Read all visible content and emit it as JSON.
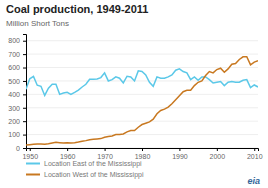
{
  "chart_data": {
    "type": "line",
    "title": "Coal production, 1949-2011",
    "ylabel": "Million Short Tons",
    "annotations": [
      "eia"
    ],
    "x": [
      1949,
      1950,
      1951,
      1952,
      1953,
      1954,
      1955,
      1956,
      1957,
      1958,
      1959,
      1960,
      1961,
      1962,
      1963,
      1964,
      1965,
      1966,
      1967,
      1968,
      1969,
      1970,
      1971,
      1972,
      1973,
      1974,
      1975,
      1976,
      1977,
      1978,
      1979,
      1980,
      1981,
      1982,
      1983,
      1984,
      1985,
      1986,
      1987,
      1988,
      1989,
      1990,
      1991,
      1992,
      1993,
      1994,
      1995,
      1996,
      1997,
      1998,
      1999,
      2000,
      2001,
      2002,
      2003,
      2004,
      2005,
      2006,
      2007,
      2008,
      2009,
      2010,
      2011
    ],
    "series": [
      {
        "name": "Location East of the Mississippi",
        "color": "#5bc8e8",
        "values": [
          438,
          516,
          534,
          468,
          460,
          392,
          446,
          476,
          476,
          400,
          410,
          415,
          400,
          415,
          432,
          455,
          475,
          512,
          512,
          515,
          525,
          560,
          500,
          510,
          530,
          520,
          485,
          535,
          530,
          500,
          575,
          570,
          545,
          490,
          460,
          530,
          520,
          520,
          530,
          545,
          580,
          590,
          570,
          560,
          510,
          530,
          505,
          530,
          530,
          510,
          485,
          490,
          495,
          465,
          490,
          495,
          490,
          490,
          505,
          510,
          450,
          470,
          455
        ]
      },
      {
        "name": "Location West of the Mississippi",
        "color": "#c87820",
        "values": [
          22,
          25,
          28,
          30,
          30,
          28,
          32,
          38,
          42,
          40,
          38,
          40,
          38,
          40,
          44,
          50,
          55,
          62,
          65,
          68,
          70,
          80,
          85,
          90,
          100,
          100,
          105,
          120,
          130,
          130,
          155,
          175,
          185,
          195,
          215,
          255,
          280,
          290,
          305,
          330,
          360,
          390,
          420,
          430,
          430,
          465,
          490,
          500,
          540,
          570,
          560,
          585,
          595,
          565,
          590,
          625,
          630,
          660,
          680,
          680,
          620,
          640,
          650
        ]
      }
    ],
    "xlim": [
      1949,
      2011
    ],
    "xticks": [
      1950,
      1960,
      1970,
      1980,
      1990,
      2000,
      2010
    ],
    "ylim": [
      0,
      850
    ],
    "yticks": [
      0,
      100,
      200,
      300,
      400,
      500,
      600,
      700,
      800
    ],
    "grid": true,
    "legend": "bottom"
  }
}
